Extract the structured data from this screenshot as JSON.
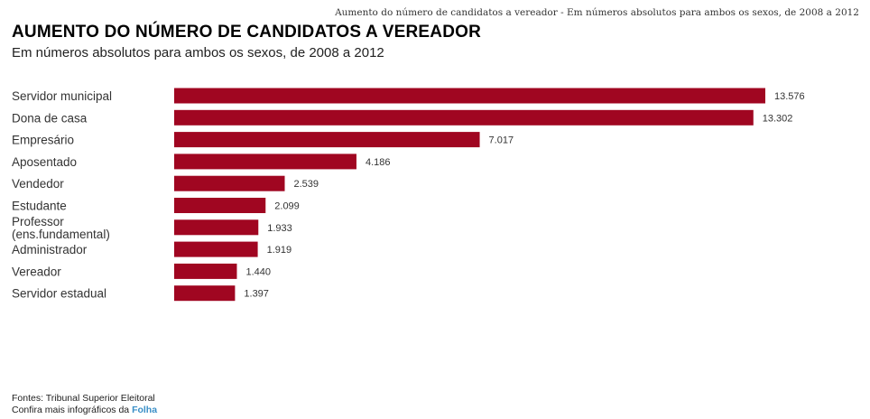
{
  "header": {
    "top_caption": "Aumento do número de candidatos a vereador - Em números absolutos para ambos os sexos, de 2008 a 2012"
  },
  "chart_data": {
    "type": "bar",
    "orientation": "horizontal",
    "title": "AUMENTO DO NÚMERO DE CANDIDATOS A VEREADOR",
    "subtitle": "Em números absolutos para ambos os sexos, de 2008 a 2012",
    "categories": [
      "Servidor municipal",
      "Dona de casa",
      "Empresário",
      "Aposentado",
      "Vendedor",
      "Estudante",
      "Professor\n(ens.fundamental)",
      "Administrador",
      "Vereador",
      "Servidor estadual"
    ],
    "values": [
      13576,
      13302,
      7017,
      4186,
      2539,
      2099,
      1933,
      1919,
      1440,
      1397
    ],
    "value_labels": [
      "13.576",
      "13.302",
      "7.017",
      "4.186",
      "2.539",
      "2.099",
      "1.933",
      "1.919",
      "1.440",
      "1.397"
    ],
    "color": "#a00621",
    "xlim": [
      0,
      13576
    ],
    "grid": false
  },
  "footer": {
    "source": "Fontes: Tribunal Superior Eleitoral",
    "more_prefix": "Confira mais infográficos da ",
    "more_link": "Folha"
  }
}
